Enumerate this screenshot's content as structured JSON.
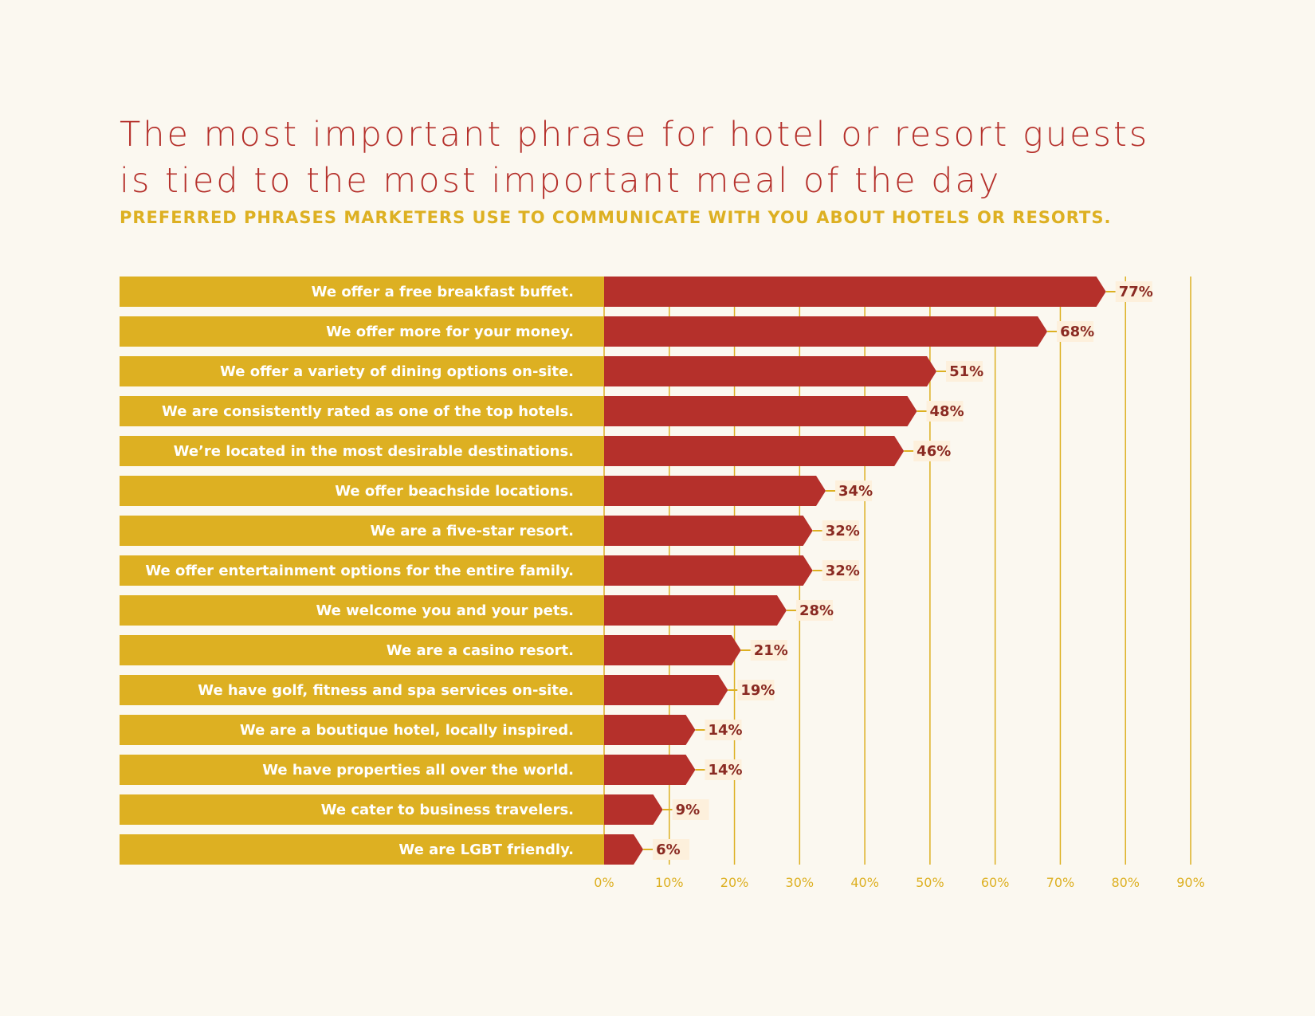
{
  "title_lines": [
    "The most important phrase for hotel or resort guests",
    "is tied to the most important meal of the day"
  ],
  "subtitle": "PREFERRED PHRASES MARKETERS USE TO COMMUNICATE WITH YOU ABOUT HOTELS OR RESORTS.",
  "colors": {
    "label_bar": "#ddb022",
    "value_bar": "#b5302b",
    "gridline": "#ddb022",
    "value_text": "#8a2a22",
    "value_bg": "#fdf0dc",
    "title": "#b5302b",
    "subtitle": "#ddb022"
  },
  "chart_data": {
    "type": "bar",
    "orientation": "horizontal",
    "categories": [
      "We offer a free breakfast buffet.",
      "We offer more for your money.",
      "We offer a variety of dining options on-site.",
      "We are consistently rated as one of the top hotels.",
      "We’re located in the most desirable destinations.",
      "We offer beachside locations.",
      "We are a five-star resort.",
      "We offer entertainment options for the entire family.",
      "We welcome you and your pets.",
      "We are a casino resort.",
      "We have golf, fitness and spa services on-site.",
      "We are a boutique hotel, locally inspired.",
      "We have properties all over the world.",
      "We cater to business travelers.",
      "We are LGBT friendly."
    ],
    "values": [
      77,
      68,
      51,
      48,
      46,
      34,
      32,
      32,
      28,
      21,
      19,
      14,
      14,
      9,
      6
    ],
    "value_labels": [
      "77%",
      "68%",
      "51%",
      "48%",
      "46%",
      "34%",
      "32%",
      "32%",
      "28%",
      "21%",
      "19%",
      "14%",
      "14%",
      "9%",
      "6%"
    ],
    "xlim": [
      0,
      90
    ],
    "xticks": [
      0,
      10,
      20,
      30,
      40,
      50,
      60,
      70,
      80,
      90
    ],
    "xtick_labels": [
      "0%",
      "10%",
      "20%",
      "30%",
      "40%",
      "50%",
      "60%",
      "70%",
      "80%",
      "90%"
    ],
    "grid": true,
    "legend": "none"
  }
}
